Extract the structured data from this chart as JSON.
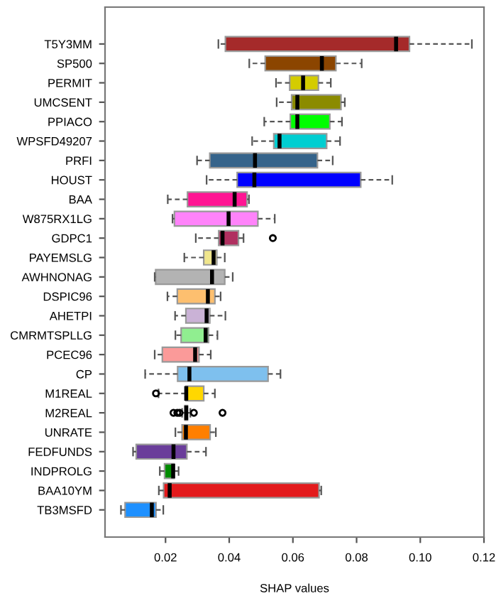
{
  "chart_data": {
    "type": "box",
    "orientation": "horizontal",
    "xlabel": "SHAP values",
    "categories": [
      "T5Y3MM",
      "SP500",
      "PERMIT",
      "UMCSENT",
      "PPIACO",
      "WPSFD49207",
      "PRFI",
      "HOUST",
      "BAA",
      "W875RX1LG",
      "GDPC1",
      "PAYEMSLG",
      "AWHNONAG",
      "DSPIC96",
      "AHETPI",
      "CMRMTSPLLG",
      "PCEC96",
      "CP",
      "M1REAL",
      "M2REAL",
      "UNRATE",
      "FEDFUNDS",
      "INDPROLG",
      "BAA10YM",
      "TB3MSFD"
    ],
    "colors": [
      "#a52a2a",
      "#8b4500",
      "#d4cc00",
      "#8b8b00",
      "#00ff00",
      "#00ced1",
      "#36648b",
      "#0000ff",
      "#ff1493",
      "#ff83fa",
      "#b03060",
      "#f0e68c",
      "#b3b3b3",
      "#fdbf6f",
      "#cab2d6",
      "#90ee90",
      "#fb9a99",
      "#7ec0ee",
      "#ffd700",
      "#ffd700",
      "#ff7f00",
      "#6a3d9a",
      "#008b00",
      "#e31a1c",
      "#1e90ff"
    ],
    "boxes": [
      {
        "low": 0.0366,
        "q1": 0.0388,
        "median": 0.0924,
        "q3": 0.0966,
        "high": 0.1162
      },
      {
        "low": 0.0463,
        "q1": 0.0513,
        "median": 0.0691,
        "q3": 0.0735,
        "high": 0.0816
      },
      {
        "low": 0.0547,
        "q1": 0.059,
        "median": 0.0632,
        "q3": 0.068,
        "high": 0.0719
      },
      {
        "low": 0.0549,
        "q1": 0.0596,
        "median": 0.0614,
        "q3": 0.0751,
        "high": 0.0763
      },
      {
        "low": 0.051,
        "q1": 0.0592,
        "median": 0.0614,
        "q3": 0.0716,
        "high": 0.0754
      },
      {
        "low": 0.0472,
        "q1": 0.054,
        "median": 0.0558,
        "q3": 0.0706,
        "high": 0.0748
      },
      {
        "low": 0.0299,
        "q1": 0.0339,
        "median": 0.0481,
        "q3": 0.0677,
        "high": 0.0725
      },
      {
        "low": 0.0329,
        "q1": 0.0425,
        "median": 0.0479,
        "q3": 0.0813,
        "high": 0.0912
      },
      {
        "low": 0.0207,
        "q1": 0.0269,
        "median": 0.0417,
        "q3": 0.0456,
        "high": 0.0462
      },
      {
        "low": 0.0222,
        "q1": 0.0228,
        "median": 0.0398,
        "q3": 0.049,
        "high": 0.0543
      },
      {
        "low": 0.0295,
        "q1": 0.0367,
        "median": 0.0379,
        "q3": 0.0429,
        "high": 0.0445,
        "outliers": [
          0.0537
        ]
      },
      {
        "low": 0.0259,
        "q1": 0.032,
        "median": 0.0351,
        "q3": 0.0361,
        "high": 0.0386
      },
      {
        "low": 0.0166,
        "q1": 0.0169,
        "median": 0.0346,
        "q3": 0.0386,
        "high": 0.0411
      },
      {
        "low": 0.0206,
        "q1": 0.0237,
        "median": 0.0333,
        "q3": 0.0355,
        "high": 0.0373
      },
      {
        "low": 0.023,
        "q1": 0.0264,
        "median": 0.0329,
        "q3": 0.0339,
        "high": 0.0388
      },
      {
        "low": 0.0231,
        "q1": 0.0249,
        "median": 0.0326,
        "q3": 0.0335,
        "high": 0.0363
      },
      {
        "low": 0.0166,
        "q1": 0.019,
        "median": 0.0293,
        "q3": 0.0305,
        "high": 0.0342
      },
      {
        "low": 0.0136,
        "q1": 0.0238,
        "median": 0.0275,
        "q3": 0.0522,
        "high": 0.0561
      },
      {
        "low": 0.0178,
        "q1": 0.0264,
        "median": 0.0265,
        "q3": 0.032,
        "high": 0.0355,
        "outliers": [
          0.017
        ]
      },
      {
        "low": 0.0252,
        "q1": 0.0261,
        "median": 0.0265,
        "q3": 0.0269,
        "high": 0.0278,
        "outliers": [
          0.0225,
          0.0237,
          0.0244,
          0.0289,
          0.0379
        ]
      },
      {
        "low": 0.0231,
        "q1": 0.0252,
        "median": 0.0264,
        "q3": 0.034,
        "high": 0.0358
      },
      {
        "low": 0.0098,
        "q1": 0.0108,
        "median": 0.0225,
        "q3": 0.0267,
        "high": 0.0327
      },
      {
        "low": 0.0182,
        "q1": 0.0197,
        "median": 0.0224,
        "q3": 0.0227,
        "high": 0.0241
      },
      {
        "low": 0.0179,
        "q1": 0.0194,
        "median": 0.0213,
        "q3": 0.0682,
        "high": 0.0689
      },
      {
        "low": 0.006,
        "q1": 0.0073,
        "median": 0.0157,
        "q3": 0.017,
        "high": 0.0193
      }
    ],
    "xlim": [
      0.001,
      0.12
    ],
    "xticks": [
      {
        "value": 0.02,
        "label": "0.02"
      },
      {
        "value": 0.04,
        "label": "0.04"
      },
      {
        "value": 0.06,
        "label": "0.06"
      },
      {
        "value": 0.08,
        "label": "0.08"
      },
      {
        "value": 0.1,
        "label": "0.10"
      },
      {
        "value": 0.12,
        "label": "0.12"
      }
    ],
    "grid": false
  }
}
